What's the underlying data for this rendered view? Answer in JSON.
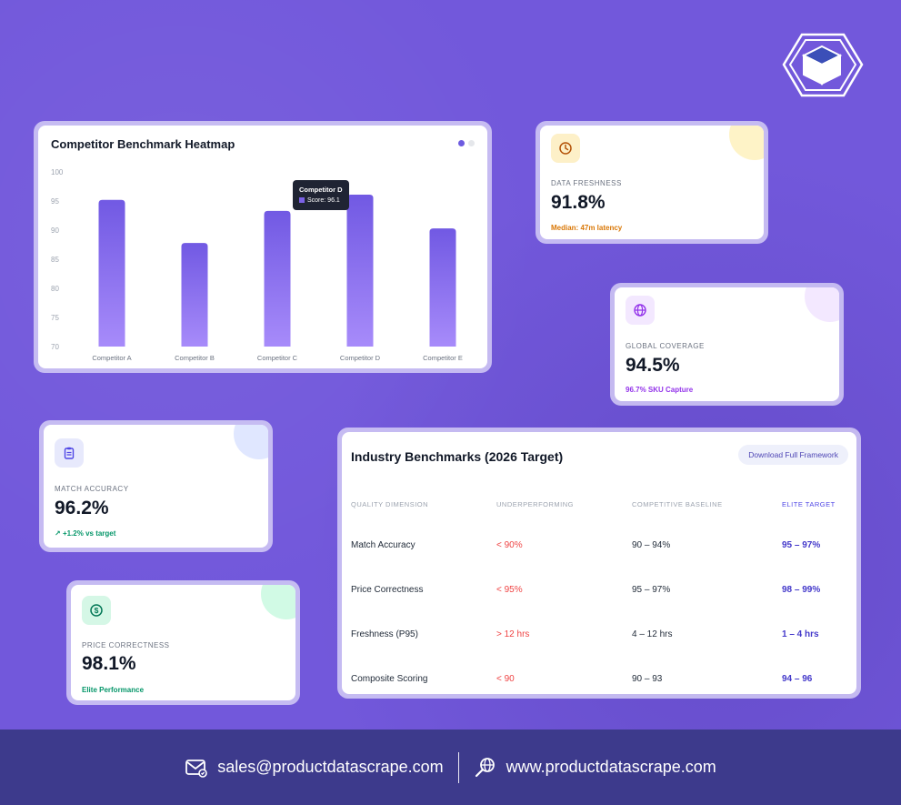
{
  "chart_card": {
    "title": "Competitor Benchmark Heatmap",
    "tooltip": {
      "title": "Competitor D",
      "text": "Score: 96.1"
    }
  },
  "chart_data": {
    "type": "bar",
    "title": "Competitor Benchmark Heatmap",
    "categories": [
      "Competitor A",
      "Competitor B",
      "Competitor C",
      "Competitor D",
      "Competitor E"
    ],
    "values": [
      95.2,
      87.8,
      93.3,
      96.1,
      90.3
    ],
    "ylim": [
      70,
      100
    ],
    "yticks": [
      100,
      95,
      90,
      85,
      80,
      75,
      70
    ],
    "grid": false,
    "bar_color_top": "#7159e3",
    "bar_color_bottom": "#a78bfa"
  },
  "stats": {
    "freshness": {
      "label": "DATA FRESHNESS",
      "value": "91.8%",
      "note": "Median: 47m latency",
      "icon": "clock-icon",
      "note_color": "#d97706"
    },
    "coverage": {
      "label": "GLOBAL COVERAGE",
      "value": "94.5%",
      "note": "96.7% SKU Capture",
      "icon": "globe-icon",
      "note_color": "#9333ea"
    },
    "match": {
      "label": "MATCH ACCURACY",
      "value": "96.2%",
      "note": "+1.2% vs target",
      "icon": "clipboard-icon",
      "note_color": "#059669"
    },
    "price": {
      "label": "PRICE CORRECTNESS",
      "value": "98.1%",
      "note": "Elite Performance",
      "icon": "dollar-icon",
      "note_color": "#059669"
    }
  },
  "benchmarks": {
    "title": "Industry Benchmarks (2026 Target)",
    "download_label": "Download Full Framework",
    "headers": [
      "QUALITY DIMENSION",
      "UNDERPERFORMING",
      "COMPETITIVE BASELINE",
      "ELITE TARGET"
    ],
    "rows": [
      [
        "Match Accuracy",
        "< 90%",
        "90 – 94%",
        "95 – 97%"
      ],
      [
        "Price Correctness",
        "< 95%",
        "95 – 97%",
        "98 – 99%"
      ],
      [
        "Freshness (P95)",
        "> 12 hrs",
        "4 – 12 hrs",
        "1 – 4 hrs"
      ],
      [
        "Composite Scoring",
        "< 90",
        "90 – 93",
        "94 – 96"
      ]
    ]
  },
  "footer": {
    "email": "sales@productdatascrape.com",
    "website": "www.productdatascrape.com"
  },
  "colors": {
    "background": "#7258db",
    "footer": "#3d3a8c",
    "accent": "#6d5be0"
  }
}
